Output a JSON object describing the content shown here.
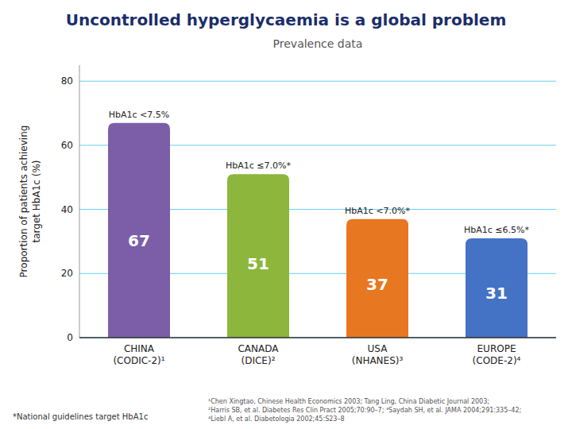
{
  "chart_data": {
    "type": "bar",
    "title": "Uncontrolled hyperglycaemia is a global problem",
    "subtitle": "Prevalence data",
    "y_label": "Proportion of patients achieving\ntarget HbA1c (%)",
    "categories": [
      "CHINA\n(CODIC-2)¹",
      "CANADA\n(DICE)²",
      "USA\n(NHANES)³",
      "EUROPE\n(CODE-2)⁴"
    ],
    "values": [
      67,
      51,
      37,
      31
    ],
    "colors": [
      "#7B5EA7",
      "#8DB63C",
      "#E87722",
      "#4472C4"
    ],
    "ylim": [
      0,
      85
    ],
    "yticks": [
      0,
      20,
      40,
      60,
      80
    ],
    "grid": true,
    "data_labels": true,
    "annotations": [
      "HbA1c <7.5%",
      "HbA1c ≤7.0%*",
      "HbA1c <7.0%*",
      "HbA1c ≤6.5%*"
    ],
    "footnotes": [
      "*National guidelines target HbA1c",
      "¹Chen Xingtao, Chinese Health Economics 2003; Tang Ling, China Diabetic Journal 2003;\n²Harris SB, et al. Diabetes Res Clin Pract 2005;70:90–7; ³Saydah SH, et al. JAMA 2004;291:335–42;\n⁴Liebl A, et al. Diabetologia 2002;45:S23–8"
    ]
  }
}
